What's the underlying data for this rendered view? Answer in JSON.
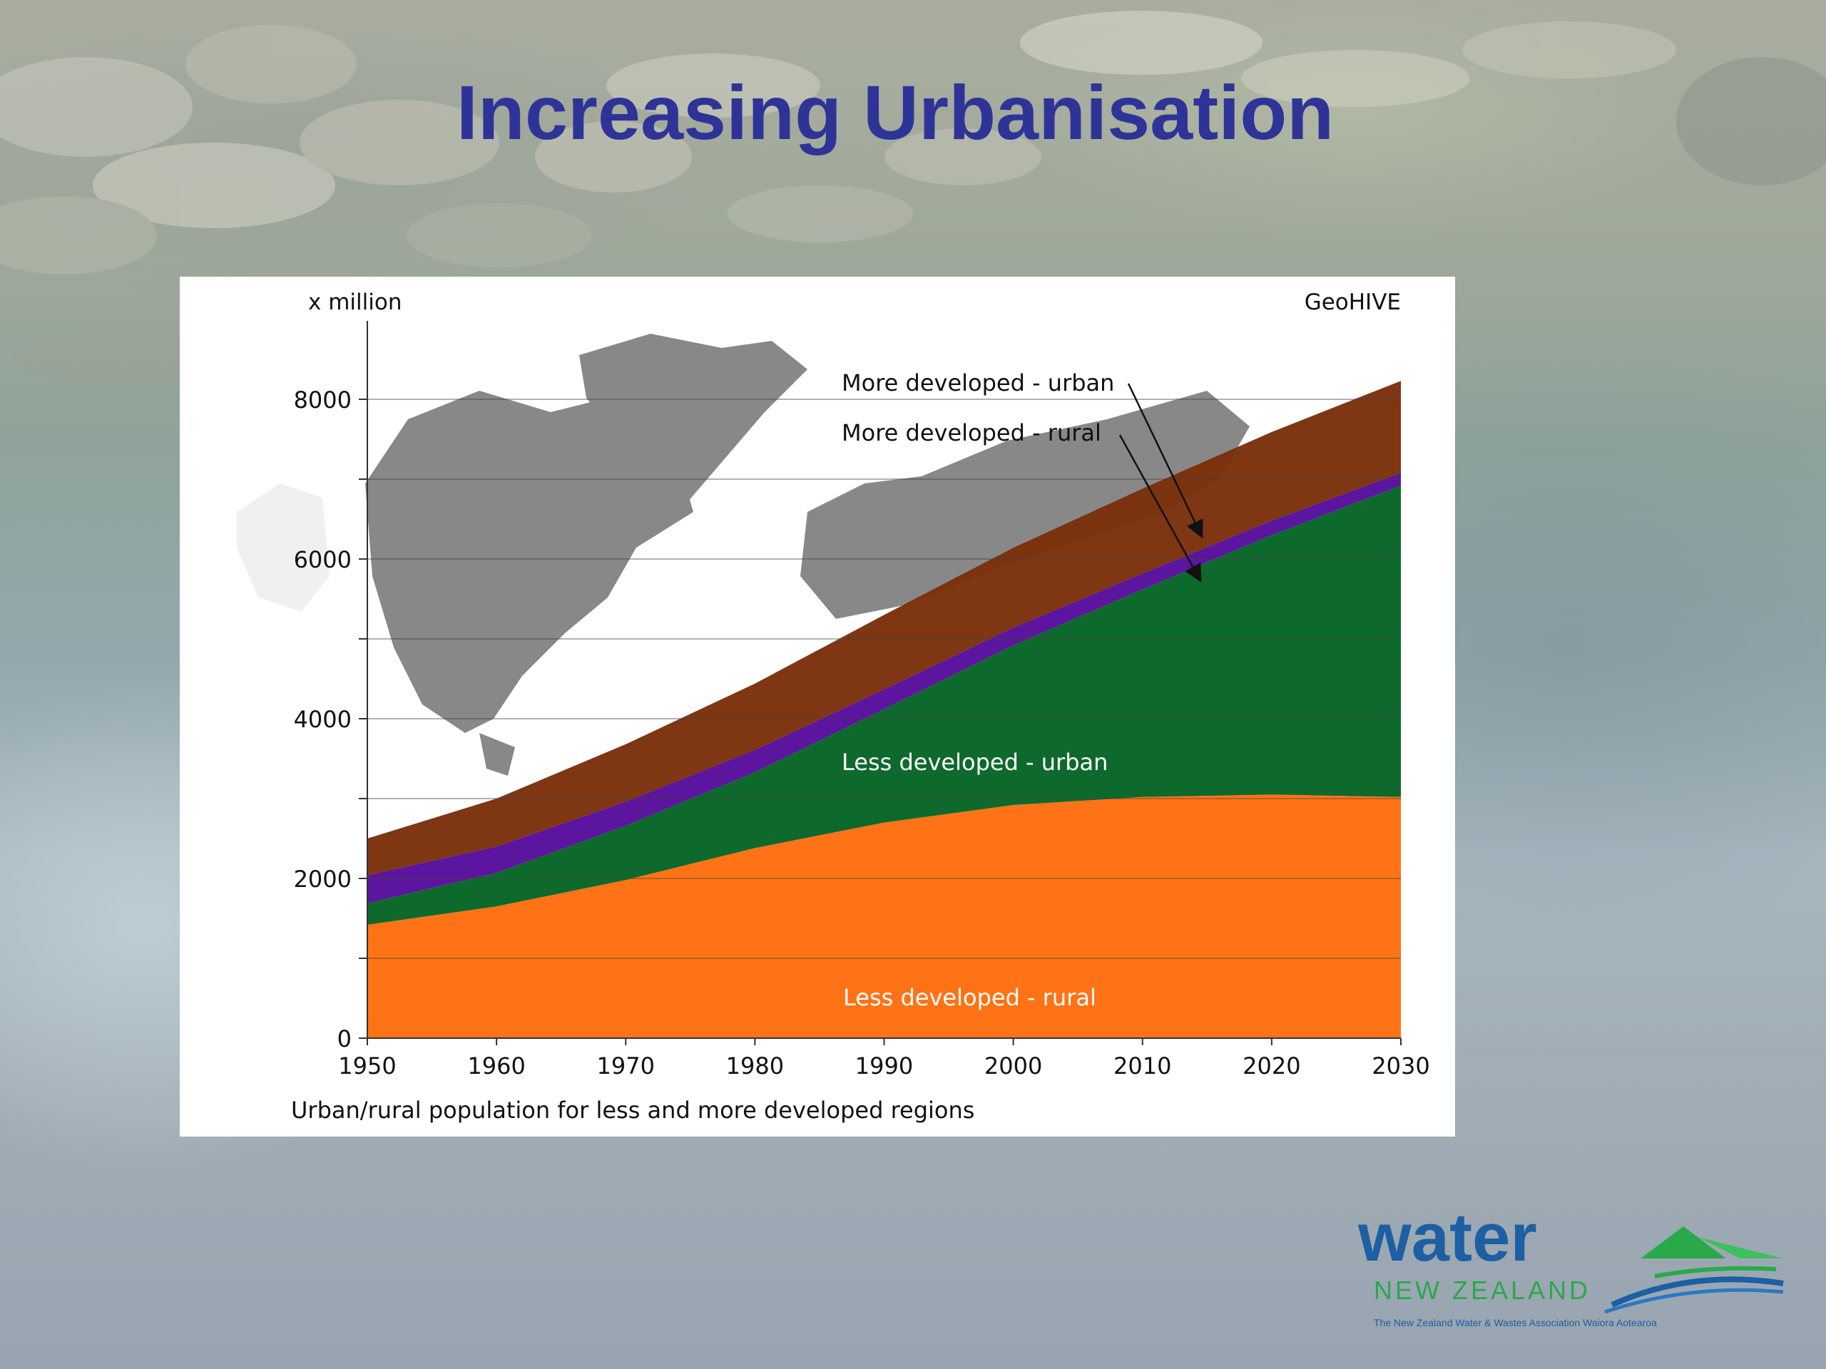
{
  "slide": {
    "title": "Increasing Urbanisation"
  },
  "chart_data": {
    "type": "area",
    "stacked": true,
    "unit_label": "x million",
    "source_label": "GeoHIVE",
    "caption": "Urban/rural population for less and more developed regions",
    "x": [
      1950,
      1960,
      1970,
      1980,
      1990,
      2000,
      2010,
      2020,
      2030
    ],
    "x_ticks": [
      1950,
      1960,
      1970,
      1980,
      1990,
      2000,
      2010,
      2020,
      2030
    ],
    "y_ticks_labeled": [
      0,
      2000,
      4000,
      6000,
      8000
    ],
    "y_gridlines": [
      1000,
      2000,
      3000,
      4000,
      5000,
      6000,
      7000,
      8000
    ],
    "ylim": [
      0,
      9000
    ],
    "xlim": [
      1950,
      2030
    ],
    "grid": true,
    "series": [
      {
        "name": "Less developed - rural",
        "color": "#ff6e0e",
        "values": [
          1420,
          1650,
          1980,
          2380,
          2700,
          2920,
          3020,
          3050,
          3020
        ]
      },
      {
        "name": "Less developed - urban",
        "color": "#066426",
        "values": [
          270,
          420,
          680,
          950,
          1420,
          2000,
          2600,
          3250,
          3900
        ]
      },
      {
        "name": "More developed - rural",
        "color": "#560d9b",
        "values": [
          350,
          330,
          300,
          280,
          250,
          220,
          200,
          180,
          160
        ]
      },
      {
        "name": "More developed - urban",
        "color": "#7a2f0b",
        "values": [
          460,
          600,
          720,
          830,
          930,
          1000,
          1060,
          1110,
          1150
        ]
      }
    ],
    "annotations": [
      {
        "text": "More developed - urban"
      },
      {
        "text": "More developed - rural"
      },
      {
        "text": "Less developed - urban"
      },
      {
        "text": "Less developed - rural"
      }
    ]
  },
  "logo": {
    "word": "water",
    "subtitle": "NEW ZEALAND",
    "tagline": "The New Zealand Water & Wastes Association Waiora Aotearoa",
    "word_color": "#1d5fa3",
    "accent_color": "#2aa94b"
  }
}
